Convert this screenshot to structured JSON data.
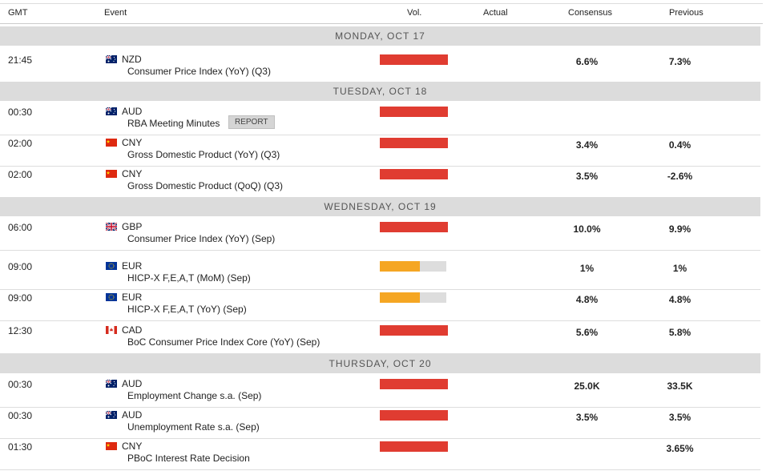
{
  "header": {
    "gmt": "GMT",
    "event": "Event",
    "vol": "Vol.",
    "actual": "Actual",
    "consensus": "Consensus",
    "previous": "Previous"
  },
  "colors": {
    "high": "#e03c31",
    "medium": "#f5a623",
    "grey": "#dddddd",
    "band": "#dcdcdc"
  },
  "days": [
    {
      "label": "MONDAY, OCT 17",
      "events": [
        {
          "time": "21:45",
          "flag": "au-flag-icon",
          "currency": "NZD",
          "name": "Consumer Price Index (YoY) (Q3)",
          "volatility": "high",
          "consensus": "6.6%",
          "previous": "7.3%"
        }
      ]
    },
    {
      "label": "TUESDAY, OCT 18",
      "events": [
        {
          "time": "00:30",
          "flag": "au-flag-icon",
          "currency": "AUD",
          "name": "RBA Meeting Minutes",
          "badge": "REPORT",
          "volatility": "high",
          "consensus": "",
          "previous": ""
        },
        {
          "time": "02:00",
          "flag": "cn-flag-icon",
          "currency": "CNY",
          "name": "Gross Domestic Product (YoY) (Q3)",
          "volatility": "high",
          "consensus": "3.4%",
          "previous": "0.4%"
        },
        {
          "time": "02:00",
          "flag": "cn-flag-icon",
          "currency": "CNY",
          "name": "Gross Domestic Product (QoQ) (Q3)",
          "volatility": "high",
          "consensus": "3.5%",
          "previous": "-2.6%"
        }
      ]
    },
    {
      "label": "WEDNESDAY, OCT 19",
      "events": [
        {
          "time": "06:00",
          "flag": "gb-flag-icon",
          "currency": "GBP",
          "name": "Consumer Price Index (YoY) (Sep)",
          "volatility": "high",
          "consensus": "10.0%",
          "previous": "9.9%"
        },
        {
          "time": "09:00",
          "flag": "eu-flag-icon",
          "currency": "EUR",
          "name": "HICP-X F,E,A,T (MoM) (Sep)",
          "volatility": "medium",
          "consensus": "1%",
          "previous": "1%"
        },
        {
          "time": "09:00",
          "flag": "eu-flag-icon",
          "currency": "EUR",
          "name": "HICP-X F,E,A,T (YoY) (Sep)",
          "volatility": "medium",
          "consensus": "4.8%",
          "previous": "4.8%"
        },
        {
          "time": "12:30",
          "flag": "ca-flag-icon",
          "currency": "CAD",
          "name": "BoC Consumer Price Index Core (YoY) (Sep)",
          "volatility": "high",
          "consensus": "5.6%",
          "previous": "5.8%"
        }
      ]
    },
    {
      "label": "THURSDAY, OCT 20",
      "events": [
        {
          "time": "00:30",
          "flag": "au-flag-icon",
          "currency": "AUD",
          "name": "Employment Change s.a. (Sep)",
          "volatility": "high",
          "consensus": "25.0K",
          "previous": "33.5K"
        },
        {
          "time": "00:30",
          "flag": "au-flag-icon",
          "currency": "AUD",
          "name": "Unemployment Rate s.a. (Sep)",
          "volatility": "high",
          "consensus": "3.5%",
          "previous": "3.5%"
        },
        {
          "time": "01:30",
          "flag": "cn-flag-icon",
          "currency": "CNY",
          "name": "PBoC Interest Rate Decision",
          "volatility": "high",
          "consensus": "",
          "previous": "3.65%"
        }
      ]
    }
  ]
}
